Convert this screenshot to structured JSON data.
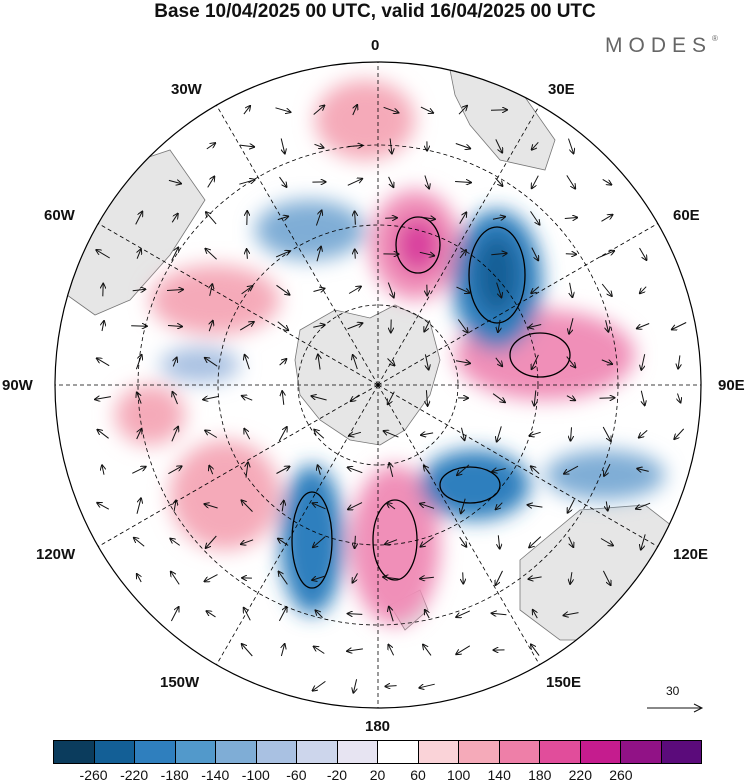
{
  "title": "Base 10/04/2025 00 UTC, valid 16/04/2025 00 UTC",
  "brand": "MODES",
  "brand_mark": "®",
  "longitude_labels": {
    "n0": "0",
    "e30": "30E",
    "w30": "30W",
    "e60": "60E",
    "w60": "60W",
    "e90": "90E",
    "w90": "90W",
    "e120": "120E",
    "w120": "120W",
    "e150": "150E",
    "w150": "150W",
    "s180": "180"
  },
  "reference_vector": "30",
  "colorbar": {
    "labels": [
      "-260",
      "-220",
      "-180",
      "-140",
      "-100",
      "-60",
      "-20",
      "20",
      "60",
      "100",
      "140",
      "180",
      "220",
      "260"
    ],
    "colors": [
      "#0b3c5d",
      "#135f96",
      "#2f7fbe",
      "#5299cb",
      "#7fadd6",
      "#a9c1e2",
      "#cdd6ec",
      "#e7e4f2",
      "#ffffff",
      "#fad3d8",
      "#f5aab9",
      "#ee7fa8",
      "#e14d9b",
      "#c51c8e",
      "#911286",
      "#5b0b7b"
    ]
  },
  "anomaly_centers": {
    "positive": [
      "#f08fb8",
      "#d93f9e",
      "#f08fb8",
      "#f5aab9",
      "#f5aab9",
      "#f5aab9",
      "#f5aab9"
    ],
    "negative": [
      "#2f7fbe",
      "#135f96",
      "#2f7fbe",
      "#2f7fbe",
      "#7fadd6",
      "#a9c1e2"
    ]
  }
}
